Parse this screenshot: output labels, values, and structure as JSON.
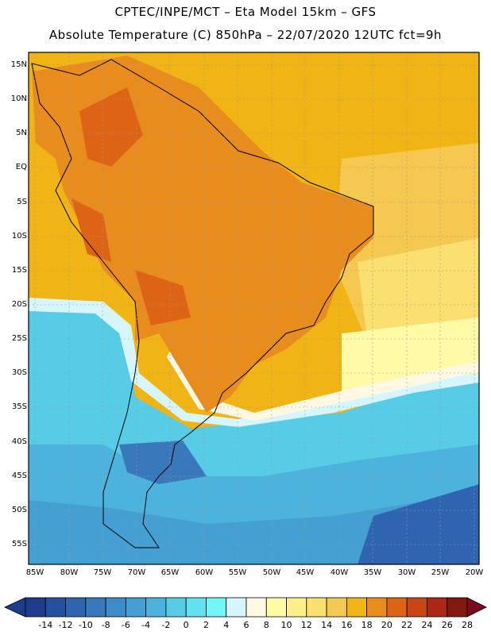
{
  "header": {
    "line1": "CPTEC/INPE/MCT –  Eta Model 15km – GFS",
    "line2": "Absolute Temperature (C) 850hPa – 22/07/2020 12UTC fct=9h"
  },
  "map": {
    "lat_labels": [
      "15N",
      "10N",
      "5N",
      "EQ",
      "5S",
      "10S",
      "15S",
      "20S",
      "25S",
      "30S",
      "35S",
      "40S",
      "45S",
      "50S",
      "55S"
    ],
    "lon_labels": [
      "85W",
      "80W",
      "75W",
      "70W",
      "65W",
      "60W",
      "55W",
      "50W",
      "45W",
      "40W",
      "35W",
      "30W",
      "25W",
      "20W"
    ]
  },
  "colorbar": {
    "labels": [
      "-14",
      "-12",
      "-10",
      "-8",
      "-6",
      "-4",
      "-2",
      "0",
      "2",
      "4",
      "6",
      "8",
      "10",
      "12",
      "14",
      "16",
      "18",
      "20",
      "22",
      "24",
      "26",
      "28"
    ],
    "colors": [
      "#1e3c8c",
      "#2450a0",
      "#2e64b0",
      "#3a78bc",
      "#3c8cc8",
      "#44a0d2",
      "#4cb4dc",
      "#56cce6",
      "#62e2ee",
      "#72f6fa",
      "#d4f6fc",
      "#fff8e2",
      "#fffaa8",
      "#fff08c",
      "#fae070",
      "#f5c850",
      "#f0b414",
      "#e88c1e",
      "#dc6414",
      "#c84614",
      "#aa2814",
      "#82180e"
    ]
  }
}
